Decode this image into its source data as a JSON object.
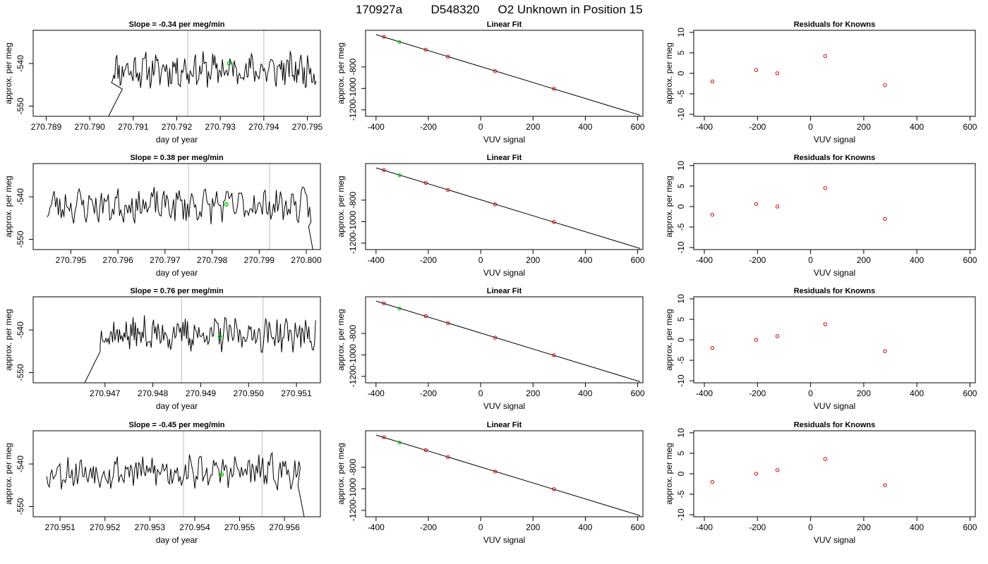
{
  "page": {
    "title": {
      "run": "170927a",
      "sample": "D548320",
      "description": "O2 Unknown in Position  15"
    }
  },
  "colors": {
    "trace": "#000000",
    "known": "#cc0000",
    "unknown": "#00cc00",
    "marker": "#c8c8c8",
    "frame": "#000000",
    "background": "#ffffff"
  },
  "chart_data": [
    {
      "row": 1,
      "panel": "timeseries",
      "type": "line",
      "title": "Slope =  -0.34  per meg/min",
      "xlabel": "day of year",
      "ylabel": "approx. per meg",
      "xlim": [
        270.7887,
        270.7953
      ],
      "ylim": [
        -552.4,
        -532.2
      ],
      "xticks": [
        270.789,
        270.79,
        270.791,
        270.792,
        270.793,
        270.794,
        270.795
      ],
      "xtick_labels": [
        "270.789",
        "270.790",
        "270.791",
        "270.792",
        "270.793",
        "270.794",
        "270.795"
      ],
      "yticks": [
        -550,
        -540
      ],
      "ytick_labels": [
        "-550",
        "-540"
      ],
      "x_start": 270.7905,
      "x_end": 270.7952,
      "base": -541.5,
      "lead_in": {
        "x_from": 270.7904,
        "x_to": 270.79075,
        "y_from": -553,
        "y_to": -546
      },
      "tail": null,
      "vlines": [
        270.79225,
        270.794
      ],
      "highlight": {
        "x": 270.7932,
        "y": -540.0
      },
      "seed": 11
    },
    {
      "row": 1,
      "panel": "fit",
      "type": "scatter",
      "title": "Linear Fit",
      "xlabel": "VUV signal",
      "ylabel": "approx. per meg",
      "xlim": [
        -440,
        620
      ],
      "ylim": [
        -1260,
        -460
      ],
      "xticks": [
        -400,
        -200,
        0,
        200,
        400,
        600
      ],
      "xtick_labels": [
        "-400",
        "-200",
        "0",
        "200",
        "400",
        "600"
      ],
      "yticks": [
        -1200,
        -1000,
        -800
      ],
      "ytick_labels": [
        "-1200",
        "-1000",
        "-800"
      ],
      "line": {
        "x": [
          -400,
          610
        ],
        "y": [
          -500,
          -1250
        ]
      },
      "knowns": [
        {
          "x": -370,
          "y": -520
        },
        {
          "x": -210,
          "y": -640
        },
        {
          "x": -125,
          "y": -705
        },
        {
          "x": 55,
          "y": -840
        },
        {
          "x": 280,
          "y": -1003
        }
      ],
      "unknown": {
        "x": -310,
        "y": -570
      }
    },
    {
      "row": 1,
      "panel": "residuals",
      "type": "scatter",
      "title": "Residuals for Knowns",
      "xlabel": "VUV signal",
      "ylabel": "approx. per meg",
      "xlim": [
        -440,
        620
      ],
      "ylim": [
        -10.5,
        10.5
      ],
      "xticks": [
        -400,
        -200,
        0,
        200,
        400,
        600
      ],
      "xtick_labels": [
        "-400",
        "-200",
        "0",
        "200",
        "400",
        "600"
      ],
      "yticks": [
        -10,
        -5,
        0,
        5,
        10
      ],
      "ytick_labels": [
        "-10",
        "-5",
        "0",
        "5",
        "10"
      ],
      "points": [
        {
          "x": -370,
          "y": -2.0
        },
        {
          "x": -205,
          "y": 0.8
        },
        {
          "x": -125,
          "y": 0.0
        },
        {
          "x": 55,
          "y": 4.2
        },
        {
          "x": 280,
          "y": -2.9
        }
      ]
    },
    {
      "row": 2,
      "panel": "timeseries",
      "type": "line",
      "title": "Slope =  0.38  per meg/min",
      "xlabel": "day of year",
      "ylabel": "approx. per meg",
      "xlim": [
        270.7942,
        270.8003
      ],
      "ylim": [
        -552.4,
        -532.2
      ],
      "xticks": [
        270.795,
        270.796,
        270.797,
        270.798,
        270.799,
        270.8
      ],
      "xtick_labels": [
        "270.795",
        "270.796",
        "270.797",
        "270.798",
        "270.799",
        "270.800"
      ],
      "yticks": [
        -550,
        -540
      ],
      "ytick_labels": [
        "-550",
        "-540"
      ],
      "x_start": 270.7945,
      "x_end": 270.8001,
      "base": -542.0,
      "lead_in": null,
      "tail": {
        "x_from": 270.80005,
        "x_to": 270.80015,
        "y_from": -547,
        "y_to": -553
      },
      "vlines": [
        270.7975,
        270.79922
      ],
      "highlight": {
        "x": 270.7983,
        "y": -541.8
      },
      "seed": 23
    },
    {
      "row": 2,
      "panel": "fit",
      "type": "scatter",
      "title": "Linear Fit",
      "xlabel": "VUV signal",
      "ylabel": "approx. per meg",
      "xlim": [
        -440,
        620
      ],
      "ylim": [
        -1260,
        -460
      ],
      "xticks": [
        -400,
        -200,
        0,
        200,
        400,
        600
      ],
      "xtick_labels": [
        "-400",
        "-200",
        "0",
        "200",
        "400",
        "600"
      ],
      "yticks": [
        -1200,
        -1000,
        -800
      ],
      "ytick_labels": [
        "-1200",
        "-1000",
        "-800"
      ],
      "line": {
        "x": [
          -400,
          610
        ],
        "y": [
          -500,
          -1250
        ]
      },
      "knowns": [
        {
          "x": -370,
          "y": -520
        },
        {
          "x": -210,
          "y": -640
        },
        {
          "x": -125,
          "y": -705
        },
        {
          "x": 55,
          "y": -840
        },
        {
          "x": 280,
          "y": -1003
        }
      ],
      "unknown": {
        "x": -310,
        "y": -570
      }
    },
    {
      "row": 2,
      "panel": "residuals",
      "type": "scatter",
      "title": "Residuals for Knowns",
      "xlabel": "VUV signal",
      "ylabel": "approx. per meg",
      "xlim": [
        -440,
        620
      ],
      "ylim": [
        -10.5,
        10.5
      ],
      "xticks": [
        -400,
        -200,
        0,
        200,
        400,
        600
      ],
      "xtick_labels": [
        "-400",
        "-200",
        "0",
        "200",
        "400",
        "600"
      ],
      "yticks": [
        -10,
        -5,
        0,
        5,
        10
      ],
      "ytick_labels": [
        "-10",
        "-5",
        "0",
        "5",
        "10"
      ],
      "points": [
        {
          "x": -370,
          "y": -2.0
        },
        {
          "x": -205,
          "y": 0.6
        },
        {
          "x": -125,
          "y": 0.0
        },
        {
          "x": 55,
          "y": 4.5
        },
        {
          "x": 280,
          "y": -3.0
        }
      ]
    },
    {
      "row": 3,
      "panel": "timeseries",
      "type": "line",
      "title": "Slope =  0.76  per meg/min",
      "xlabel": "day of year",
      "ylabel": "approx. per meg",
      "xlim": [
        270.9455,
        270.9515
      ],
      "ylim": [
        -552.4,
        -532.2
      ],
      "xticks": [
        270.947,
        270.948,
        270.949,
        270.95,
        270.951
      ],
      "xtick_labels": [
        "270.947",
        "270.948",
        "270.949",
        "270.950",
        "270.951"
      ],
      "yticks": [
        -550,
        -540
      ],
      "ytick_labels": [
        "-550",
        "-540"
      ],
      "x_start": 270.9469,
      "x_end": 270.9514,
      "base": -541.0,
      "lead_in": {
        "x_from": 270.94655,
        "x_to": 270.9469,
        "y_from": -553,
        "y_to": -545
      },
      "tail": null,
      "vlines": [
        270.9486,
        270.9503
      ],
      "highlight": {
        "x": 270.9494,
        "y": -541.5
      },
      "seed": 37
    },
    {
      "row": 3,
      "panel": "fit",
      "type": "scatter",
      "title": "Linear Fit",
      "xlabel": "VUV signal",
      "ylabel": "approx. per meg",
      "xlim": [
        -440,
        620
      ],
      "ylim": [
        -1260,
        -460
      ],
      "xticks": [
        -400,
        -200,
        0,
        200,
        400,
        600
      ],
      "xtick_labels": [
        "-400",
        "-200",
        "0",
        "200",
        "400",
        "600"
      ],
      "yticks": [
        -1200,
        -1000,
        -800
      ],
      "ytick_labels": [
        "-1200",
        "-1000",
        "-800"
      ],
      "line": {
        "x": [
          -400,
          610
        ],
        "y": [
          -500,
          -1250
        ]
      },
      "knowns": [
        {
          "x": -370,
          "y": -520
        },
        {
          "x": -210,
          "y": -640
        },
        {
          "x": -125,
          "y": -705
        },
        {
          "x": 55,
          "y": -840
        },
        {
          "x": 280,
          "y": -1003
        }
      ],
      "unknown": {
        "x": -310,
        "y": -570
      }
    },
    {
      "row": 3,
      "panel": "residuals",
      "type": "scatter",
      "title": "Residuals for Knowns",
      "xlabel": "VUV signal",
      "ylabel": "approx. per meg",
      "xlim": [
        -440,
        620
      ],
      "ylim": [
        -10.5,
        10.5
      ],
      "xticks": [
        -400,
        -200,
        0,
        200,
        400,
        600
      ],
      "xtick_labels": [
        "-400",
        "-200",
        "0",
        "200",
        "400",
        "600"
      ],
      "yticks": [
        -10,
        -5,
        0,
        5,
        10
      ],
      "ytick_labels": [
        "-10",
        "-5",
        "0",
        "5",
        "10"
      ],
      "points": [
        {
          "x": -370,
          "y": -2.0
        },
        {
          "x": -205,
          "y": 0.0
        },
        {
          "x": -125,
          "y": 0.9
        },
        {
          "x": 55,
          "y": 3.8
        },
        {
          "x": 280,
          "y": -2.8
        }
      ]
    },
    {
      "row": 4,
      "panel": "timeseries",
      "type": "line",
      "title": "Slope =  -0.45  per meg/min",
      "xlabel": "day of year",
      "ylabel": "approx. per meg",
      "xlim": [
        270.9504,
        270.9568
      ],
      "ylim": [
        -552.4,
        -532.2
      ],
      "xticks": [
        270.951,
        270.952,
        270.953,
        270.954,
        270.955,
        270.956
      ],
      "xtick_labels": [
        "270.951",
        "270.952",
        "270.953",
        "270.954",
        "270.955",
        "270.956"
      ],
      "yticks": [
        -550,
        -540
      ],
      "ytick_labels": [
        "-550",
        "-540"
      ],
      "x_start": 270.9507,
      "x_end": 270.95635,
      "base": -541.8,
      "lead_in": null,
      "tail": {
        "x_from": 270.9563,
        "x_to": 270.95645,
        "y_from": -545,
        "y_to": -553
      },
      "vlines": [
        270.95375,
        270.9555
      ],
      "highlight": {
        "x": 270.9546,
        "y": -542.5
      },
      "seed": 53
    },
    {
      "row": 4,
      "panel": "fit",
      "type": "scatter",
      "title": "Linear Fit",
      "xlabel": "VUV signal",
      "ylabel": "approx. per meg",
      "xlim": [
        -440,
        620
      ],
      "ylim": [
        -1260,
        -460
      ],
      "xticks": [
        -400,
        -200,
        0,
        200,
        400,
        600
      ],
      "xtick_labels": [
        "-400",
        "-200",
        "0",
        "200",
        "400",
        "600"
      ],
      "yticks": [
        -1200,
        -1000,
        -800
      ],
      "ytick_labels": [
        "-1200",
        "-1000",
        "-800"
      ],
      "line": {
        "x": [
          -400,
          610
        ],
        "y": [
          -500,
          -1250
        ]
      },
      "knowns": [
        {
          "x": -370,
          "y": -520
        },
        {
          "x": -210,
          "y": -640
        },
        {
          "x": -125,
          "y": -705
        },
        {
          "x": 55,
          "y": -840
        },
        {
          "x": 280,
          "y": -1003
        }
      ],
      "unknown": {
        "x": -310,
        "y": -570
      }
    },
    {
      "row": 4,
      "panel": "residuals",
      "type": "scatter",
      "title": "Residuals for Knowns",
      "xlabel": "VUV signal",
      "ylabel": "approx. per meg",
      "xlim": [
        -440,
        620
      ],
      "ylim": [
        -10.5,
        10.5
      ],
      "xticks": [
        -400,
        -200,
        0,
        200,
        400,
        600
      ],
      "xtick_labels": [
        "-400",
        "-200",
        "0",
        "200",
        "400",
        "600"
      ],
      "yticks": [
        -10,
        -5,
        0,
        5,
        10
      ],
      "ytick_labels": [
        "-10",
        "-5",
        "0",
        "5",
        "10"
      ],
      "points": [
        {
          "x": -370,
          "y": -2.0
        },
        {
          "x": -205,
          "y": 0.0
        },
        {
          "x": -125,
          "y": 0.9
        },
        {
          "x": 55,
          "y": 3.6
        },
        {
          "x": 280,
          "y": -2.8
        }
      ]
    }
  ]
}
